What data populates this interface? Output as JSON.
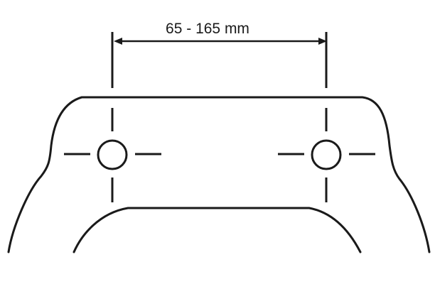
{
  "dimension": {
    "label": "65 - 165 mm"
  },
  "colors": {
    "stroke": "#1a1a1a",
    "background": "#ffffff"
  }
}
